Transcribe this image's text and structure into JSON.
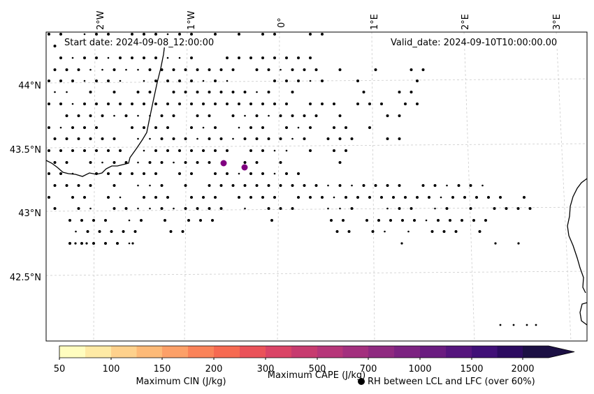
{
  "map": {
    "start_date": "Start date: 2024-09-08_12:00:00",
    "valid_date": "Valid_date: 2024-09-10T10:00:00.00",
    "lon_labels": [
      "2°W",
      "1°W",
      "0°",
      "1°E",
      "2°E",
      "3°E"
    ],
    "lat_labels": [
      "44°N",
      "43.5°N",
      "43°N",
      "42.5°N"
    ]
  },
  "colorbar": {
    "ticks": [
      "50",
      "100",
      "150",
      "200",
      "300",
      "500",
      "700",
      "1000",
      "1500",
      "2000"
    ],
    "colors": [
      "#fffdbf",
      "#feeaa5",
      "#fed18c",
      "#fdba78",
      "#fca068",
      "#fa8359",
      "#f66a51",
      "#ea5259",
      "#da4466",
      "#c73b6f",
      "#b63679",
      "#a3307e",
      "#8f2a80",
      "#7c2381",
      "#6a1c80",
      "#55157d",
      "#401077",
      "#2c0b60",
      "#1c1044"
    ],
    "cape_label": "Maximum CAPE (J/kg)",
    "cin_label": "Maximum CIN (J/kg)",
    "cin_color": "#ff0000",
    "rh_label": "RH between LCL and LFC (over 60%)",
    "rh_marker": "black-dot"
  },
  "markers": {
    "cape_point_color": "#800080"
  }
}
